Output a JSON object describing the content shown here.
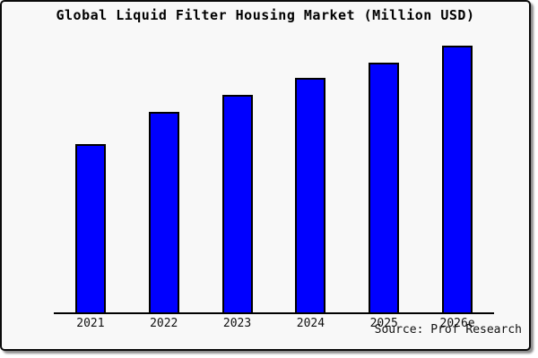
{
  "title": "Global Liquid Filter Housing Market (Million USD)",
  "source_note": "Source: Prof Research",
  "colors": {
    "bar_fill": "#0000ff",
    "bar_border": "#000000",
    "card_background": "#f8f8f8",
    "plot_background": "#ffffff",
    "axis": "#000000",
    "frame_border": "#0a0a0a",
    "text": "#000000"
  },
  "chart_data": {
    "type": "bar",
    "title": "Global Liquid Filter Housing Market (Million USD)",
    "categories": [
      "2021",
      "2022",
      "2023",
      "2024",
      "2025",
      "2026e"
    ],
    "values": [
      63,
      75,
      81.5,
      88,
      93.5,
      100
    ],
    "units": "relative index (no y-axis scale shown; 2026e bar = 100)",
    "xlabel": "",
    "ylabel": "",
    "ylim": [
      0,
      100
    ],
    "grid": false,
    "legend": false,
    "y_axis_labels_visible": false,
    "bar_color": "#0000ff",
    "annotations": [
      "Source: Prof Research"
    ]
  }
}
